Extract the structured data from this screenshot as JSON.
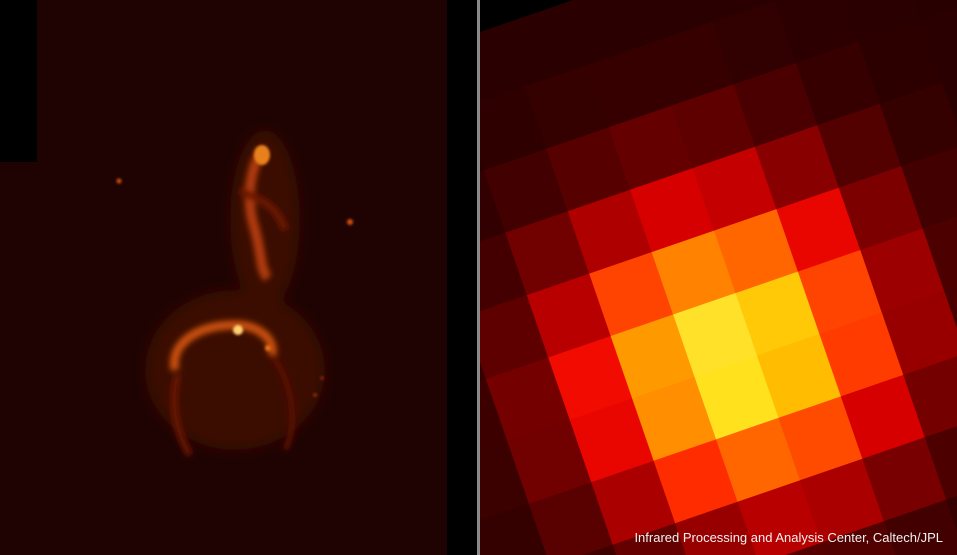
{
  "caption": "Infrared Processing and Analysis Center, Caltech/JPL",
  "colors": {
    "divider": "#8a8a8a",
    "colormap": "heat"
  }
}
